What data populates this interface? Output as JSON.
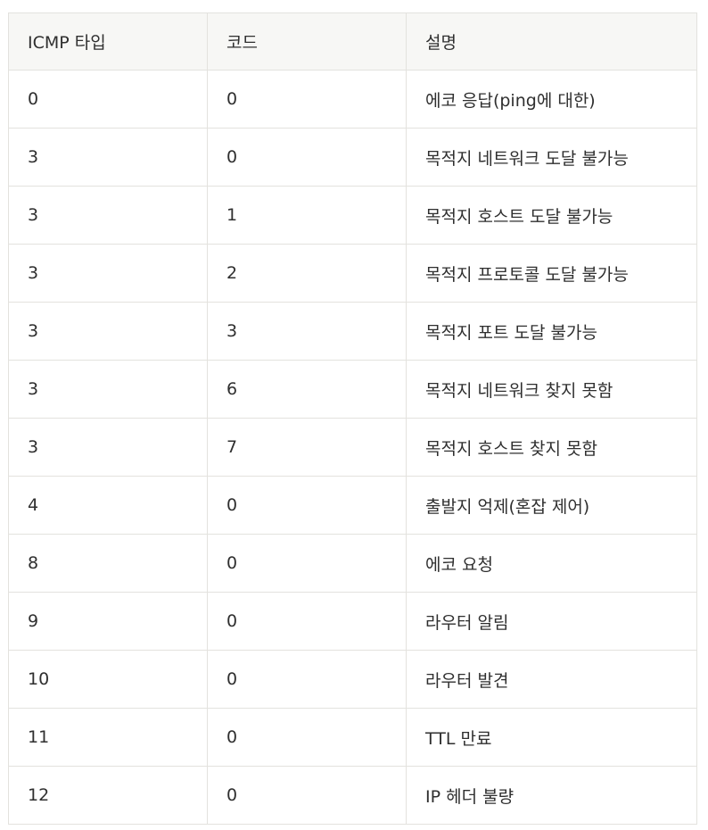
{
  "table": {
    "headers": [
      "ICMP 타입",
      "코드",
      "설명"
    ],
    "rows": [
      [
        "0",
        "0",
        "에코 응답(ping에 대한)"
      ],
      [
        "3",
        "0",
        "목적지 네트워크 도달 불가능"
      ],
      [
        "3",
        "1",
        "목적지 호스트 도달 불가능"
      ],
      [
        "3",
        "2",
        "목적지 프로토콜 도달 불가능"
      ],
      [
        "3",
        "3",
        "목적지 포트 도달 불가능"
      ],
      [
        "3",
        "6",
        "목적지 네트워크 찾지 못함"
      ],
      [
        "3",
        "7",
        "목적지 호스트 찾지 못함"
      ],
      [
        "4",
        "0",
        "출발지 억제(혼잡 제어)"
      ],
      [
        "8",
        "0",
        "에코 요청"
      ],
      [
        "9",
        "0",
        "라우터 알림"
      ],
      [
        "10",
        "0",
        "라우터 발견"
      ],
      [
        "11",
        "0",
        "TTL 만료"
      ],
      [
        "12",
        "0",
        "IP 헤더 불량"
      ]
    ]
  }
}
